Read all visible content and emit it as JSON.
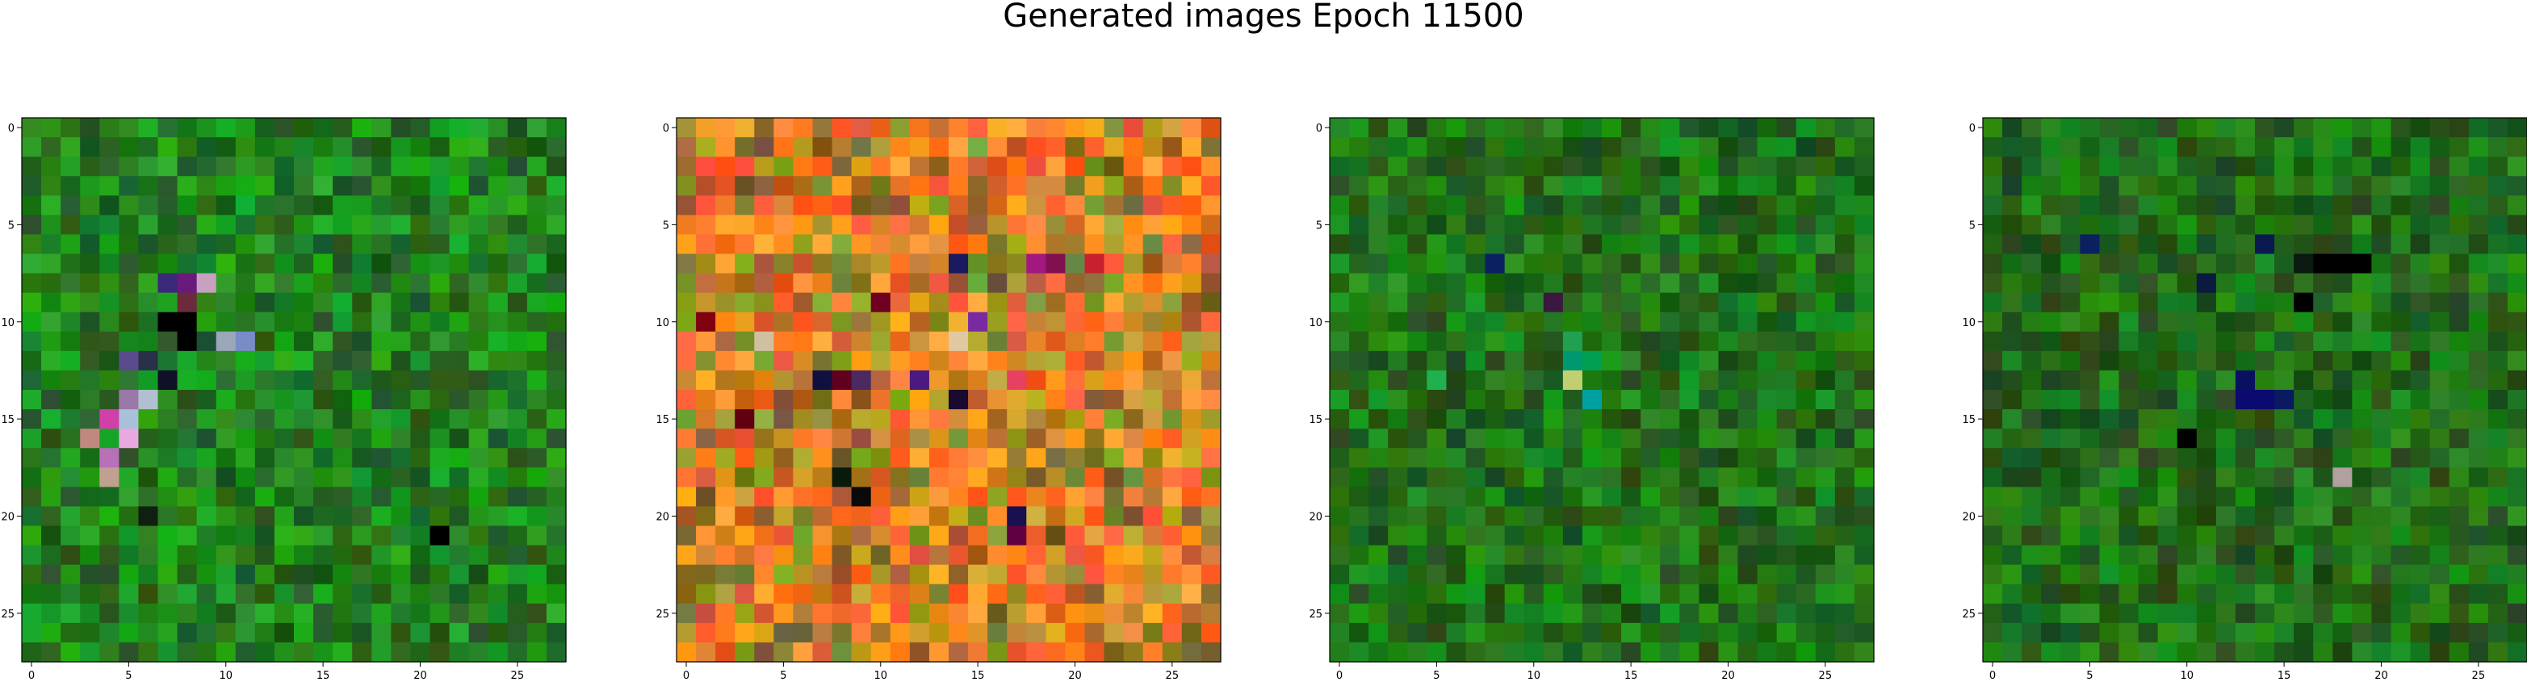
{
  "title": "Generated images Epoch 11500",
  "image_size": 28,
  "ticks": [
    0,
    5,
    10,
    15,
    20,
    25
  ],
  "panels": [
    {
      "name": "generated-image-1",
      "base": "#1f8a18",
      "accents": [
        {
          "row": 8,
          "col": 7,
          "color": "#3a2878"
        },
        {
          "row": 8,
          "col": 8,
          "color": "#6a1a7a"
        },
        {
          "row": 8,
          "col": 9,
          "color": "#c8a0c0"
        },
        {
          "row": 9,
          "col": 8,
          "color": "#6a2c3c"
        },
        {
          "row": 10,
          "col": 7,
          "color": "#000000"
        },
        {
          "row": 10,
          "col": 8,
          "color": "#000000"
        },
        {
          "row": 11,
          "col": 8,
          "color": "#000000"
        },
        {
          "row": 11,
          "col": 10,
          "color": "#9aa7b8"
        },
        {
          "row": 11,
          "col": 11,
          "color": "#7a8cc8"
        },
        {
          "row": 12,
          "col": 5,
          "color": "#5a4c8c"
        },
        {
          "row": 12,
          "col": 6,
          "color": "#2a3048"
        },
        {
          "row": 13,
          "col": 7,
          "color": "#101028"
        },
        {
          "row": 14,
          "col": 5,
          "color": "#9a78a8"
        },
        {
          "row": 14,
          "col": 6,
          "color": "#b0c0d0"
        },
        {
          "row": 15,
          "col": 4,
          "color": "#d040a8"
        },
        {
          "row": 15,
          "col": 5,
          "color": "#a8c0d8"
        },
        {
          "row": 16,
          "col": 5,
          "color": "#e8a8e0"
        },
        {
          "row": 16,
          "col": 3,
          "color": "#c08880"
        },
        {
          "row": 17,
          "col": 4,
          "color": "#b870b8"
        },
        {
          "row": 18,
          "col": 4,
          "color": "#c0a090"
        },
        {
          "row": 20,
          "col": 6,
          "color": "#102010"
        },
        {
          "row": 21,
          "col": 21,
          "color": "#000000"
        }
      ]
    },
    {
      "name": "generated-image-2",
      "base": "#c88a20",
      "accents": [
        {
          "row": 7,
          "col": 14,
          "color": "#1a1a60"
        },
        {
          "row": 7,
          "col": 18,
          "color": "#a01880"
        },
        {
          "row": 7,
          "col": 19,
          "color": "#801050"
        },
        {
          "row": 7,
          "col": 21,
          "color": "#c82030"
        },
        {
          "row": 9,
          "col": 10,
          "color": "#700020"
        },
        {
          "row": 10,
          "col": 1,
          "color": "#800010"
        },
        {
          "row": 10,
          "col": 15,
          "color": "#7a2aa0"
        },
        {
          "row": 11,
          "col": 4,
          "color": "#d0c0a0"
        },
        {
          "row": 11,
          "col": 14,
          "color": "#e0c8a0"
        },
        {
          "row": 13,
          "col": 7,
          "color": "#101040"
        },
        {
          "row": 13,
          "col": 8,
          "color": "#600020"
        },
        {
          "row": 13,
          "col": 9,
          "color": "#4a2a60"
        },
        {
          "row": 13,
          "col": 12,
          "color": "#4a1a80"
        },
        {
          "row": 13,
          "col": 17,
          "color": "#e84060"
        },
        {
          "row": 14,
          "col": 14,
          "color": "#1a0a30"
        },
        {
          "row": 15,
          "col": 3,
          "color": "#600010"
        },
        {
          "row": 18,
          "col": 8,
          "color": "#0a1a0a"
        },
        {
          "row": 19,
          "col": 9,
          "color": "#0a0a0a"
        },
        {
          "row": 20,
          "col": 17,
          "color": "#1a1050"
        },
        {
          "row": 21,
          "col": 17,
          "color": "#600040"
        }
      ]
    },
    {
      "name": "generated-image-3",
      "base": "#1e7a14",
      "accents": [
        {
          "row": 7,
          "col": 8,
          "color": "#0a2060"
        },
        {
          "row": 9,
          "col": 11,
          "color": "#3a1840"
        },
        {
          "row": 11,
          "col": 12,
          "color": "#20a050"
        },
        {
          "row": 12,
          "col": 12,
          "color": "#009870"
        },
        {
          "row": 12,
          "col": 13,
          "color": "#00a050"
        },
        {
          "row": 13,
          "col": 12,
          "color": "#c0d070"
        },
        {
          "row": 14,
          "col": 13,
          "color": "#00a0a0"
        },
        {
          "row": 13,
          "col": 5,
          "color": "#20b050"
        }
      ]
    },
    {
      "name": "generated-image-4",
      "base": "#1f7514",
      "accents": [
        {
          "row": 6,
          "col": 5,
          "color": "#0a2060"
        },
        {
          "row": 6,
          "col": 14,
          "color": "#0a1a50"
        },
        {
          "row": 7,
          "col": 16,
          "color": "#0a1a10"
        },
        {
          "row": 7,
          "col": 17,
          "color": "#000000"
        },
        {
          "row": 7,
          "col": 18,
          "color": "#000000"
        },
        {
          "row": 7,
          "col": 19,
          "color": "#000000"
        },
        {
          "row": 8,
          "col": 11,
          "color": "#0a1a40"
        },
        {
          "row": 9,
          "col": 16,
          "color": "#000000"
        },
        {
          "row": 13,
          "col": 13,
          "color": "#0a1060"
        },
        {
          "row": 14,
          "col": 13,
          "color": "#0a0a70"
        },
        {
          "row": 14,
          "col": 14,
          "color": "#0a0a70"
        },
        {
          "row": 14,
          "col": 15,
          "color": "#0a1a60"
        },
        {
          "row": 16,
          "col": 10,
          "color": "#000000"
        },
        {
          "row": 18,
          "col": 18,
          "color": "#b0a0a0"
        }
      ]
    }
  ]
}
